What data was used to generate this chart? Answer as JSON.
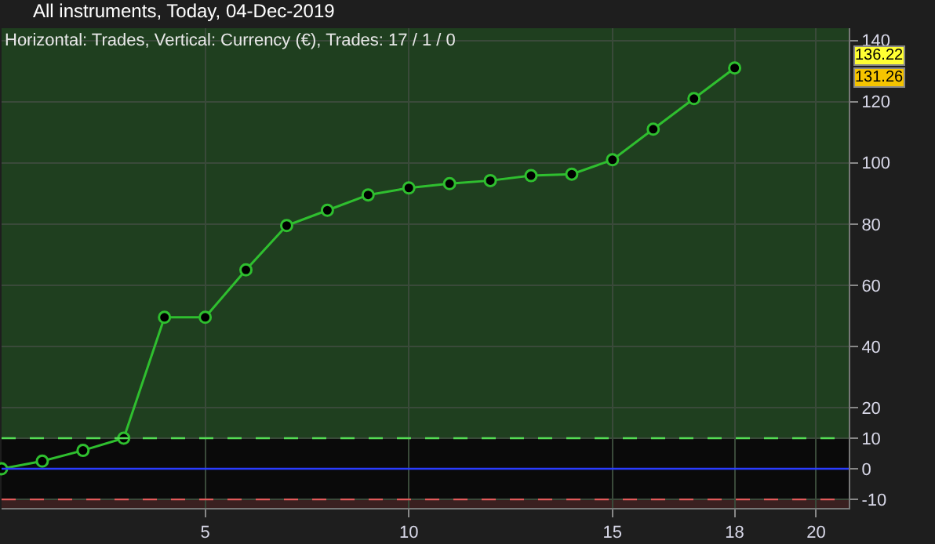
{
  "chart_data": {
    "type": "line",
    "title": "All instruments, Today, 04-Dec-2019",
    "subtitle": "Horizontal: Trades, Vertical: Currency (€), Trades: 17 / 1 / 0",
    "x": [
      0,
      1,
      2,
      3,
      4,
      5,
      6,
      7,
      8,
      9,
      10,
      11,
      12,
      13,
      14,
      15,
      16,
      17,
      18
    ],
    "series": [
      {
        "color": "#2fbf2f",
        "values": [
          0,
          2.5,
          6,
          10,
          49.5,
          49.5,
          65,
          79.5,
          84.5,
          89.5,
          91.8,
          93.2,
          94.2,
          95.8,
          96.3,
          101,
          111,
          121,
          131
        ]
      }
    ],
    "xlim": [
      0,
      20.8
    ],
    "xticks": [
      5,
      10,
      15,
      18,
      20
    ],
    "ylim": [
      -12.8,
      144
    ],
    "yticks": [
      -10,
      0,
      10,
      20,
      40,
      60,
      80,
      100,
      120,
      140
    ],
    "ref_lines": [
      {
        "axis": "y",
        "value": 10,
        "color": "#55dd55",
        "line_style": "dashed"
      },
      {
        "axis": "y",
        "value": 0,
        "color": "#2a3cff",
        "line_style": "solid"
      },
      {
        "axis": "y",
        "value": -10,
        "color": "#e05a5a",
        "line_style": "dashed"
      }
    ],
    "bands": [
      {
        "axis": "y",
        "from": 10,
        "to": 144,
        "color": "#1f3f1f"
      },
      {
        "axis": "y",
        "from": -10,
        "to": 10,
        "color": "#0a0a0a"
      },
      {
        "axis": "y",
        "from": -12.8,
        "to": -10,
        "color": "#3a2020"
      }
    ],
    "annotations": [
      "136.22",
      "131.26"
    ],
    "grid": true,
    "marker": "circle",
    "line_style": "solid",
    "legend": false
  }
}
